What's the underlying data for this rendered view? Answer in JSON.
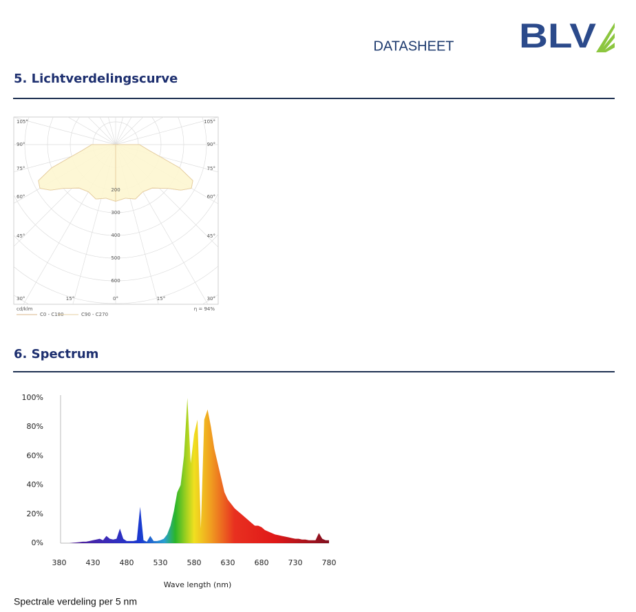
{
  "header": {
    "title": "DATASHEET",
    "logo": "BLV"
  },
  "sections": [
    {
      "title": "5. Lichtverdelingscurve",
      "polar": {
        "unit": "cd/klm",
        "left_angle_labels": [
          "105°",
          "90°",
          "75°",
          "60°",
          "45°",
          "30°"
        ],
        "right_angle_labels": [
          "105°",
          "90°",
          "75°",
          "60°",
          "45°",
          "30°"
        ],
        "bottom_angle_labels": [
          "15°",
          "0°",
          "15°"
        ],
        "radial_ticks": [
          200,
          300,
          400,
          500,
          600
        ],
        "efficiency": "η = 94%",
        "angles": [
          0,
          10,
          20,
          30,
          40,
          50,
          55,
          60,
          65,
          70,
          75,
          80,
          90
        ],
        "series": [
          {
            "name": "C0 - C180",
            "color": "#d9b48a",
            "values": [
              250,
              240,
              255,
              240,
              250,
              300,
              350,
              385,
              375,
              300,
              200,
              150,
              105
            ]
          },
          {
            "name": "C90 - C270",
            "color": "#e6cfa0",
            "values": [
              250,
              240,
              255,
              240,
              250,
              300,
              350,
              385,
              375,
              300,
              200,
              150,
              105
            ]
          }
        ]
      }
    },
    {
      "title": "6. Spectrum",
      "chart": {
        "type": "area",
        "x_label": "Wave length (nm)",
        "x": [
          380,
          385,
          390,
          395,
          400,
          405,
          410,
          415,
          420,
          425,
          430,
          435,
          440,
          445,
          450,
          455,
          460,
          465,
          470,
          475,
          480,
          485,
          490,
          495,
          500,
          505,
          510,
          515,
          520,
          525,
          530,
          535,
          540,
          545,
          550,
          555,
          560,
          565,
          570,
          575,
          580,
          585,
          590,
          595,
          600,
          605,
          610,
          615,
          620,
          625,
          630,
          635,
          640,
          645,
          650,
          655,
          660,
          665,
          670,
          675,
          680,
          685,
          690,
          695,
          700,
          705,
          710,
          715,
          720,
          725,
          730,
          735,
          740,
          745,
          750,
          755,
          760,
          765,
          770,
          775,
          780
        ],
        "values": [
          0,
          0,
          0,
          0,
          0.3,
          0.5,
          0.7,
          1,
          1,
          1.5,
          2,
          2.5,
          3,
          2,
          5,
          3,
          2.5,
          3,
          10,
          3,
          1.5,
          1.5,
          1.5,
          2,
          25,
          2,
          1,
          5,
          1.5,
          1.5,
          2,
          3,
          6,
          12,
          22,
          35,
          40,
          60,
          100,
          55,
          75,
          85,
          10,
          85,
          92,
          80,
          65,
          55,
          45,
          35,
          30,
          27,
          24,
          22,
          20,
          18,
          16,
          14,
          12,
          12,
          11,
          9,
          8,
          7,
          6,
          5.5,
          5,
          4.5,
          4,
          3.5,
          3,
          3,
          2.5,
          2.5,
          2,
          2,
          2,
          7,
          3,
          2,
          2
        ],
        "xlim": [
          380,
          780
        ],
        "xticks": [
          380,
          430,
          480,
          530,
          580,
          630,
          680,
          730,
          780
        ],
        "ylim": [
          0,
          100
        ],
        "yticks": [
          {
            "value": 0,
            "label": "0%"
          },
          {
            "value": 20,
            "label": "20%"
          },
          {
            "value": 40,
            "label": "40%"
          },
          {
            "value": 60,
            "label": "60%"
          },
          {
            "value": 80,
            "label": "80%"
          },
          {
            "value": 100,
            "label": "100%"
          }
        ]
      },
      "caption": "Spectrale verdeling per 5 nm"
    }
  ]
}
